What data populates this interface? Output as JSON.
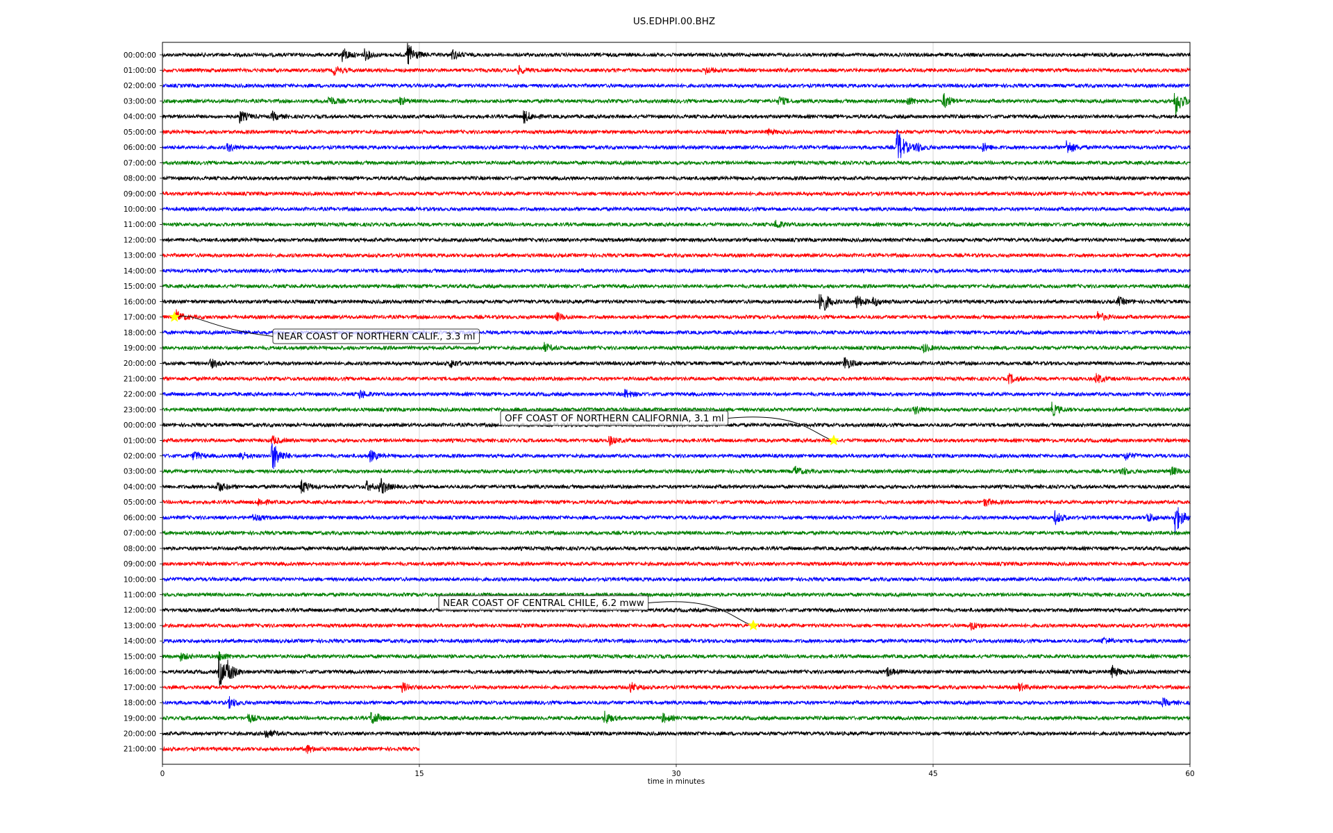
{
  "chart_data": {
    "type": "line",
    "title": "US.EDHPI.00.BHZ",
    "xlabel": "time in minutes",
    "xlim": [
      0,
      60
    ],
    "xticks": [
      "0",
      "15",
      "30",
      "45",
      "60"
    ],
    "row_labels": [
      "00:00:00",
      "01:00:00",
      "02:00:00",
      "03:00:00",
      "04:00:00",
      "05:00:00",
      "06:00:00",
      "07:00:00",
      "08:00:00",
      "09:00:00",
      "10:00:00",
      "11:00:00",
      "12:00:00",
      "13:00:00",
      "14:00:00",
      "15:00:00",
      "16:00:00",
      "17:00:00",
      "18:00:00",
      "19:00:00",
      "20:00:00",
      "21:00:00",
      "22:00:00",
      "23:00:00",
      "00:00:00",
      "01:00:00",
      "02:00:00",
      "03:00:00",
      "04:00:00",
      "05:00:00",
      "06:00:00",
      "07:00:00",
      "08:00:00",
      "09:00:00",
      "10:00:00",
      "11:00:00",
      "12:00:00",
      "13:00:00",
      "14:00:00",
      "15:00:00",
      "16:00:00",
      "17:00:00",
      "18:00:00",
      "19:00:00",
      "20:00:00",
      "21:00:00"
    ],
    "series_colors": [
      "#000000",
      "#ff0000",
      "#0000ff",
      "#008000"
    ],
    "last_row_end_minute": 15,
    "grid_x": true,
    "bursts": [
      {
        "row": 0,
        "minute": 14.3,
        "amp": 1.0
      },
      {
        "row": 0,
        "minute": 10.5,
        "amp": 0.5
      },
      {
        "row": 0,
        "minute": 11.8,
        "amp": 0.35
      },
      {
        "row": 0,
        "minute": 16.9,
        "amp": 0.35
      },
      {
        "row": 1,
        "minute": 10.0,
        "amp": 0.3
      },
      {
        "row": 1,
        "minute": 20.8,
        "amp": 0.25
      },
      {
        "row": 1,
        "minute": 31.7,
        "amp": 0.25
      },
      {
        "row": 3,
        "minute": 59.1,
        "amp": 1.1
      },
      {
        "row": 3,
        "minute": 45.6,
        "amp": 0.55
      },
      {
        "row": 3,
        "minute": 9.7,
        "amp": 0.35
      },
      {
        "row": 3,
        "minute": 13.8,
        "amp": 0.3
      },
      {
        "row": 3,
        "minute": 36.0,
        "amp": 0.3
      },
      {
        "row": 3,
        "minute": 43.5,
        "amp": 0.3
      },
      {
        "row": 4,
        "minute": 4.5,
        "amp": 0.45
      },
      {
        "row": 4,
        "minute": 21.1,
        "amp": 0.45
      },
      {
        "row": 4,
        "minute": 6.4,
        "amp": 0.3
      },
      {
        "row": 5,
        "minute": 35.3,
        "amp": 0.2
      },
      {
        "row": 6,
        "minute": 42.9,
        "amp": 1.4
      },
      {
        "row": 6,
        "minute": 52.8,
        "amp": 0.55
      },
      {
        "row": 6,
        "minute": 44.0,
        "amp": 0.35
      },
      {
        "row": 6,
        "minute": 3.8,
        "amp": 0.3
      },
      {
        "row": 6,
        "minute": 47.9,
        "amp": 0.3
      },
      {
        "row": 11,
        "minute": 35.8,
        "amp": 0.3
      },
      {
        "row": 16,
        "minute": 38.4,
        "amp": 1.1
      },
      {
        "row": 16,
        "minute": 40.5,
        "amp": 0.5
      },
      {
        "row": 16,
        "minute": 55.8,
        "amp": 0.3
      },
      {
        "row": 16,
        "minute": 41.5,
        "amp": 0.3
      },
      {
        "row": 17,
        "minute": 0.8,
        "amp": 0.45
      },
      {
        "row": 17,
        "minute": 54.6,
        "amp": 0.35
      },
      {
        "row": 17,
        "minute": 23.0,
        "amp": 0.3
      },
      {
        "row": 19,
        "minute": 22.3,
        "amp": 0.3
      },
      {
        "row": 19,
        "minute": 44.4,
        "amp": 0.3
      },
      {
        "row": 20,
        "minute": 39.8,
        "amp": 0.5
      },
      {
        "row": 20,
        "minute": 16.8,
        "amp": 0.3
      },
      {
        "row": 20,
        "minute": 2.8,
        "amp": 0.3
      },
      {
        "row": 21,
        "minute": 49.4,
        "amp": 0.35
      },
      {
        "row": 21,
        "minute": 54.5,
        "amp": 0.35
      },
      {
        "row": 22,
        "minute": 11.5,
        "amp": 0.3
      },
      {
        "row": 22,
        "minute": 27.0,
        "amp": 0.3
      },
      {
        "row": 23,
        "minute": 51.9,
        "amp": 0.5
      },
      {
        "row": 23,
        "minute": 43.9,
        "amp": 0.3
      },
      {
        "row": 25,
        "minute": 6.4,
        "amp": 0.3
      },
      {
        "row": 25,
        "minute": 26.1,
        "amp": 0.3
      },
      {
        "row": 26,
        "minute": 6.4,
        "amp": 1.2
      },
      {
        "row": 26,
        "minute": 12.1,
        "amp": 0.4
      },
      {
        "row": 26,
        "minute": 1.8,
        "amp": 0.35
      },
      {
        "row": 26,
        "minute": 4.5,
        "amp": 0.35
      },
      {
        "row": 26,
        "minute": 56.2,
        "amp": 0.3
      },
      {
        "row": 27,
        "minute": 36.9,
        "amp": 0.35
      },
      {
        "row": 27,
        "minute": 56.0,
        "amp": 0.3
      },
      {
        "row": 27,
        "minute": 58.9,
        "amp": 0.3
      },
      {
        "row": 28,
        "minute": 12.7,
        "amp": 0.6
      },
      {
        "row": 28,
        "minute": 3.2,
        "amp": 0.4
      },
      {
        "row": 28,
        "minute": 8.1,
        "amp": 0.5
      },
      {
        "row": 28,
        "minute": 11.9,
        "amp": 0.35
      },
      {
        "row": 29,
        "minute": 48.0,
        "amp": 0.3
      },
      {
        "row": 29,
        "minute": 5.6,
        "amp": 0.25
      },
      {
        "row": 30,
        "minute": 59.1,
        "amp": 1.2
      },
      {
        "row": 30,
        "minute": 52.1,
        "amp": 0.45
      },
      {
        "row": 30,
        "minute": 57.5,
        "amp": 0.35
      },
      {
        "row": 30,
        "minute": 5.3,
        "amp": 0.25
      },
      {
        "row": 37,
        "minute": 47.2,
        "amp": 0.3
      },
      {
        "row": 38,
        "minute": 54.9,
        "amp": 0.25
      },
      {
        "row": 39,
        "minute": 3.3,
        "amp": 0.35
      },
      {
        "row": 39,
        "minute": 1.0,
        "amp": 0.3
      },
      {
        "row": 40,
        "minute": 3.3,
        "amp": 1.1
      },
      {
        "row": 40,
        "minute": 3.8,
        "amp": 0.6
      },
      {
        "row": 40,
        "minute": 55.4,
        "amp": 0.45
      },
      {
        "row": 40,
        "minute": 42.3,
        "amp": 0.3
      },
      {
        "row": 41,
        "minute": 14.0,
        "amp": 0.3
      },
      {
        "row": 41,
        "minute": 27.3,
        "amp": 0.35
      },
      {
        "row": 41,
        "minute": 50.0,
        "amp": 0.25
      },
      {
        "row": 42,
        "minute": 3.9,
        "amp": 0.35
      },
      {
        "row": 42,
        "minute": 58.4,
        "amp": 0.25
      },
      {
        "row": 43,
        "minute": 12.2,
        "amp": 0.55
      },
      {
        "row": 43,
        "minute": 25.8,
        "amp": 0.45
      },
      {
        "row": 43,
        "minute": 29.2,
        "amp": 0.3
      },
      {
        "row": 43,
        "minute": 5.0,
        "amp": 0.3
      },
      {
        "row": 44,
        "minute": 6.0,
        "amp": 0.35
      },
      {
        "row": 45,
        "minute": 8.4,
        "amp": 0.3
      }
    ],
    "events": [
      {
        "label": "NEAR COAST OF NORTHERN CALIF., 3.3 ml",
        "row": 17,
        "minute": 0.7
      },
      {
        "label": "OFF COAST OF NORTHERN CALIFORNIA, 3.1 ml",
        "row": 25,
        "minute": 39.2
      },
      {
        "label": "NEAR COAST OF CENTRAL CHILE, 6.2 mww",
        "row": 37,
        "minute": 34.5
      }
    ]
  }
}
